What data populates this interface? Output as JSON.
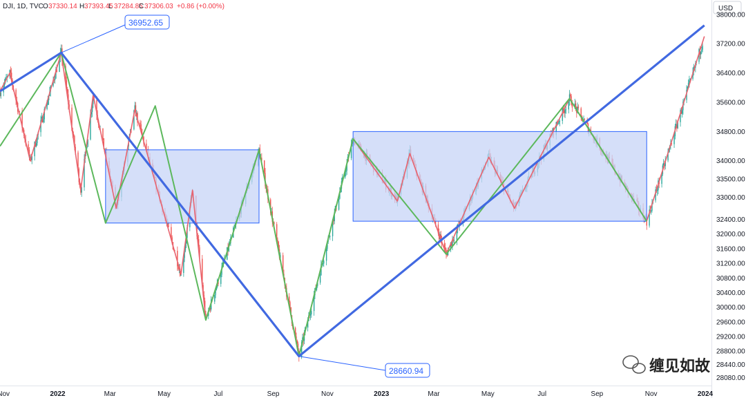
{
  "header": {
    "symbol": "DJI, 1D, TVC",
    "open_label": "O",
    "open": "37330.14",
    "high_label": "H",
    "high": "37393.45",
    "low_label": "L",
    "low": "37284.85",
    "close_label": "C",
    "close": "37306.03",
    "change": "+0.86 (+0.00%)"
  },
  "currency": "USD",
  "watermark": "缠见如故",
  "chart_data": {
    "type": "line",
    "instrument": "DJI",
    "interval": "1D",
    "candles": "daily candlesticks, green = up, red = down",
    "ylim": [
      27860,
      38280
    ],
    "yticks": [
      "38000.00",
      "37200.00",
      "36400.00",
      "35600.00",
      "34800.00",
      "34000.00",
      "33500.00",
      "33000.00",
      "32400.00",
      "32000.00",
      "31600.00",
      "31200.00",
      "30800.00",
      "30400.00",
      "30000.00",
      "29600.00",
      "29200.00",
      "28800.00",
      "28440.00",
      "28080.00"
    ],
    "xlabels": [
      "Nov",
      "2022",
      "Mar",
      "May",
      "Jul",
      "Sep",
      "Nov",
      "2023",
      "Mar",
      "May",
      "Jul",
      "Sep",
      "Nov",
      "2024"
    ],
    "x_range": [
      "2021-10-28",
      "2024-01-08"
    ],
    "annotations": [
      {
        "date": "2022-01-05",
        "value": 36952.65,
        "label": "36952.65"
      },
      {
        "date": "2022-09-30",
        "value": 28660.94,
        "label": "28660.94"
      }
    ],
    "trend_line_blue": [
      {
        "date": "2021-10-28",
        "value": 35900
      },
      {
        "date": "2022-01-05",
        "value": 36952.65
      },
      {
        "date": "2022-09-30",
        "value": 28660.94
      },
      {
        "date": "2023-12-31",
        "value": 37700
      }
    ],
    "pivots_green": [
      {
        "date": "2021-10-28",
        "value": 34400
      },
      {
        "date": "2022-01-05",
        "value": 36952.65
      },
      {
        "date": "2022-02-24",
        "value": 32300
      },
      {
        "date": "2022-04-21",
        "value": 35500
      },
      {
        "date": "2022-06-17",
        "value": 29650
      },
      {
        "date": "2022-08-16",
        "value": 34300
      },
      {
        "date": "2022-09-30",
        "value": 28660.94
      },
      {
        "date": "2022-11-30",
        "value": 34600
      },
      {
        "date": "2023-03-15",
        "value": 31450
      },
      {
        "date": "2023-08-01",
        "value": 35700
      },
      {
        "date": "2023-10-27",
        "value": 32350
      }
    ],
    "pivots_red": [
      {
        "date": "2021-10-28",
        "value": 35900
      },
      {
        "date": "2021-11-08",
        "value": 36400
      },
      {
        "date": "2021-12-01",
        "value": 34000
      },
      {
        "date": "2022-01-05",
        "value": 36952.65
      },
      {
        "date": "2022-01-27",
        "value": 33200
      },
      {
        "date": "2022-02-10",
        "value": 35800
      },
      {
        "date": "2022-03-08",
        "value": 32700
      },
      {
        "date": "2022-03-29",
        "value": 35400
      },
      {
        "date": "2022-05-20",
        "value": 30900
      },
      {
        "date": "2022-06-02",
        "value": 33200
      },
      {
        "date": "2022-06-17",
        "value": 29650
      },
      {
        "date": "2022-08-16",
        "value": 34300
      },
      {
        "date": "2022-09-30",
        "value": 28660.94
      },
      {
        "date": "2022-11-30",
        "value": 34600
      },
      {
        "date": "2023-01-19",
        "value": 32900
      },
      {
        "date": "2023-02-02",
        "value": 34200
      },
      {
        "date": "2023-03-15",
        "value": 31450
      },
      {
        "date": "2023-05-02",
        "value": 34100
      },
      {
        "date": "2023-05-31",
        "value": 32700
      },
      {
        "date": "2023-08-01",
        "value": 35700
      },
      {
        "date": "2023-10-27",
        "value": 32350
      },
      {
        "date": "2023-12-31",
        "value": 37400
      }
    ],
    "boxes": [
      {
        "from": "2022-02-24",
        "to": "2022-08-16",
        "low": 32300,
        "high": 34300
      },
      {
        "from": "2022-11-30",
        "to": "2023-10-27",
        "low": 32350,
        "high": 34800
      }
    ]
  },
  "colors": {
    "up": "#26a69a",
    "down": "#ef5350",
    "blue_line": "#4169e1",
    "green_line": "#5cb85c",
    "red_line": "#e8636f",
    "box_fill": "#c7d4f7",
    "box_stroke": "#2962ff",
    "axis_text": "#131722"
  }
}
